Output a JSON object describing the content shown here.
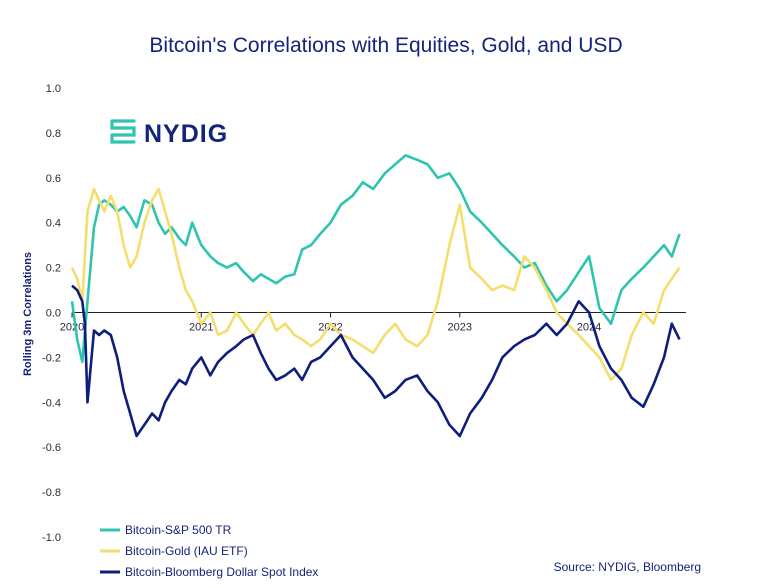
{
  "chart_data": {
    "type": "line",
    "title": "Bitcoin's Correlations with Equities, Gold, and USD",
    "xlabel": "",
    "ylabel": "Rolling 3m Correlations",
    "ylim": [
      -1.0,
      1.0
    ],
    "xlim": [
      2020.0,
      2024.75
    ],
    "yticks": [
      "1.0",
      "0.8",
      "0.6",
      "0.4",
      "0.2",
      "0.0",
      "-0.2",
      "-0.4",
      "-0.6",
      "-0.8",
      "-1.0"
    ],
    "ytick_values": [
      1.0,
      0.8,
      0.6,
      0.4,
      0.2,
      0.0,
      -0.2,
      -0.4,
      -0.6,
      -0.8,
      -1.0
    ],
    "xticks": [
      "2020",
      "2021",
      "2022",
      "2023",
      "2024"
    ],
    "xtick_values": [
      2020,
      2021,
      2022,
      2023,
      2024
    ],
    "grid": false,
    "legend_position": "bottom-left",
    "source": "Source: NYDIG, Bloomberg",
    "logo": "NYDIG",
    "series": [
      {
        "name": "Bitcoin-S&P 500 TR",
        "color": "#2ec4b0",
        "x": [
          2020.0,
          2020.04,
          2020.08,
          2020.12,
          2020.17,
          2020.21,
          2020.25,
          2020.3,
          2020.35,
          2020.4,
          2020.45,
          2020.5,
          2020.56,
          2020.62,
          2020.67,
          2020.72,
          2020.77,
          2020.83,
          2020.88,
          2020.93,
          2021.0,
          2021.07,
          2021.13,
          2021.2,
          2021.27,
          2021.33,
          2021.4,
          2021.46,
          2021.52,
          2021.58,
          2021.65,
          2021.72,
          2021.78,
          2021.85,
          2021.92,
          2022.0,
          2022.08,
          2022.17,
          2022.25,
          2022.33,
          2022.42,
          2022.5,
          2022.58,
          2022.67,
          2022.75,
          2022.83,
          2022.92,
          2023.0,
          2023.08,
          2023.17,
          2023.25,
          2023.33,
          2023.42,
          2023.5,
          2023.58,
          2023.67,
          2023.75,
          2023.83,
          2023.92,
          2024.0,
          2024.08,
          2024.17,
          2024.25,
          2024.33,
          2024.42,
          2024.5,
          2024.58,
          2024.64,
          2024.7
        ],
        "y": [
          0.05,
          -0.12,
          -0.22,
          0.05,
          0.38,
          0.48,
          0.5,
          0.48,
          0.45,
          0.47,
          0.43,
          0.38,
          0.5,
          0.48,
          0.4,
          0.35,
          0.38,
          0.33,
          0.3,
          0.4,
          0.3,
          0.25,
          0.22,
          0.2,
          0.22,
          0.18,
          0.14,
          0.17,
          0.15,
          0.13,
          0.16,
          0.17,
          0.28,
          0.3,
          0.35,
          0.4,
          0.48,
          0.52,
          0.58,
          0.55,
          0.62,
          0.66,
          0.7,
          0.68,
          0.66,
          0.6,
          0.62,
          0.55,
          0.45,
          0.4,
          0.35,
          0.3,
          0.25,
          0.2,
          0.22,
          0.12,
          0.05,
          0.1,
          0.18,
          0.25,
          0.02,
          -0.05,
          0.1,
          0.15,
          0.2,
          0.25,
          0.3,
          0.25,
          0.35
        ]
      },
      {
        "name": "Bitcoin-Gold (IAU ETF)",
        "color": "#f3de6e",
        "x": [
          2020.0,
          2020.04,
          2020.08,
          2020.12,
          2020.17,
          2020.21,
          2020.25,
          2020.3,
          2020.35,
          2020.4,
          2020.45,
          2020.5,
          2020.56,
          2020.62,
          2020.67,
          2020.72,
          2020.77,
          2020.83,
          2020.88,
          2020.93,
          2021.0,
          2021.07,
          2021.13,
          2021.2,
          2021.27,
          2021.33,
          2021.4,
          2021.46,
          2021.52,
          2021.58,
          2021.65,
          2021.72,
          2021.78,
          2021.85,
          2021.92,
          2022.0,
          2022.08,
          2022.17,
          2022.25,
          2022.33,
          2022.42,
          2022.5,
          2022.58,
          2022.67,
          2022.75,
          2022.83,
          2022.92,
          2023.0,
          2023.08,
          2023.17,
          2023.25,
          2023.33,
          2023.42,
          2023.5,
          2023.58,
          2023.67,
          2023.75,
          2023.83,
          2023.92,
          2024.0,
          2024.08,
          2024.17,
          2024.25,
          2024.33,
          2024.42,
          2024.5,
          2024.58,
          2024.64,
          2024.7
        ],
        "y": [
          0.2,
          0.15,
          0.05,
          0.45,
          0.55,
          0.5,
          0.45,
          0.52,
          0.45,
          0.3,
          0.2,
          0.25,
          0.4,
          0.5,
          0.55,
          0.45,
          0.35,
          0.2,
          0.1,
          0.05,
          -0.05,
          0.0,
          -0.1,
          -0.08,
          0.0,
          -0.05,
          -0.1,
          -0.05,
          0.0,
          -0.08,
          -0.05,
          -0.1,
          -0.12,
          -0.15,
          -0.12,
          -0.05,
          -0.1,
          -0.12,
          -0.15,
          -0.18,
          -0.1,
          -0.05,
          -0.12,
          -0.15,
          -0.1,
          0.05,
          0.3,
          0.48,
          0.2,
          0.15,
          0.1,
          0.12,
          0.1,
          0.25,
          0.2,
          0.1,
          0.0,
          -0.05,
          -0.1,
          -0.15,
          -0.2,
          -0.3,
          -0.25,
          -0.1,
          0.0,
          -0.05,
          0.1,
          0.15,
          0.2
        ]
      },
      {
        "name": "Bitcoin-Bloomberg Dollar Spot Index",
        "color": "#0f1e7a",
        "x": [
          2020.0,
          2020.04,
          2020.08,
          2020.1,
          2020.12,
          2020.17,
          2020.21,
          2020.25,
          2020.3,
          2020.35,
          2020.4,
          2020.45,
          2020.5,
          2020.56,
          2020.62,
          2020.67,
          2020.72,
          2020.77,
          2020.83,
          2020.88,
          2020.93,
          2021.0,
          2021.07,
          2021.13,
          2021.2,
          2021.27,
          2021.33,
          2021.4,
          2021.46,
          2021.52,
          2021.58,
          2021.65,
          2021.72,
          2021.78,
          2021.85,
          2021.92,
          2022.0,
          2022.08,
          2022.17,
          2022.25,
          2022.33,
          2022.42,
          2022.5,
          2022.58,
          2022.67,
          2022.75,
          2022.83,
          2022.92,
          2023.0,
          2023.08,
          2023.17,
          2023.25,
          2023.33,
          2023.42,
          2023.5,
          2023.58,
          2023.67,
          2023.75,
          2023.83,
          2023.92,
          2024.0,
          2024.08,
          2024.17,
          2024.25,
          2024.33,
          2024.42,
          2024.5,
          2024.58,
          2024.64,
          2024.7
        ],
        "y": [
          0.12,
          0.1,
          0.05,
          -0.05,
          -0.4,
          -0.08,
          -0.1,
          -0.08,
          -0.1,
          -0.2,
          -0.35,
          -0.45,
          -0.55,
          -0.5,
          -0.45,
          -0.48,
          -0.4,
          -0.35,
          -0.3,
          -0.32,
          -0.25,
          -0.2,
          -0.28,
          -0.22,
          -0.18,
          -0.15,
          -0.12,
          -0.1,
          -0.18,
          -0.25,
          -0.3,
          -0.28,
          -0.25,
          -0.3,
          -0.22,
          -0.2,
          -0.15,
          -0.1,
          -0.2,
          -0.25,
          -0.3,
          -0.38,
          -0.35,
          -0.3,
          -0.28,
          -0.35,
          -0.4,
          -0.5,
          -0.55,
          -0.45,
          -0.38,
          -0.3,
          -0.2,
          -0.15,
          -0.12,
          -0.1,
          -0.05,
          -0.1,
          -0.05,
          0.05,
          0.0,
          -0.15,
          -0.25,
          -0.3,
          -0.38,
          -0.42,
          -0.32,
          -0.2,
          -0.05,
          -0.12
        ]
      }
    ]
  }
}
